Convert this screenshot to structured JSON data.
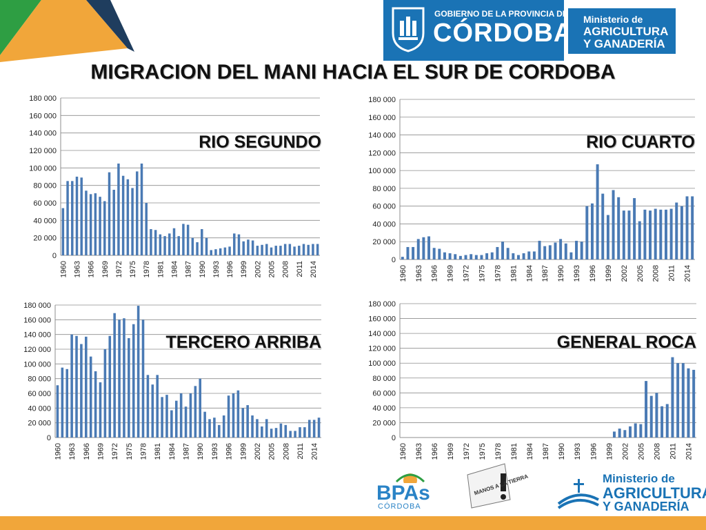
{
  "header": {
    "gov_line1": "GOBIERNO DE LA PROVINCIA DE",
    "gov_line2": "CÓRDOBA",
    "ministry_line1": "Ministerio de",
    "ministry_line2": "AGRICULTURA",
    "ministry_line3": "Y GANADERÍA"
  },
  "page_title": "MIGRACION DEL MANI HACIA EL SUR DE CORDOBA",
  "colors": {
    "bar": "#4a7ab4",
    "gov_blue": "#1a73b5",
    "corner_green": "#2e9e43",
    "corner_orange": "#f1a63a",
    "corner_navy": "#1f3d5e",
    "footer": "#f1a63a"
  },
  "footer": {
    "bpas": "BPAs",
    "bpas_sub": "CÓRDOBA",
    "manos": "MANOS A LA TIERRA",
    "ministry_line1": "Ministerio de",
    "ministry_line2": "AGRICULTURA",
    "ministry_line3": "Y GANADERÍA"
  },
  "chart_data": [
    {
      "type": "bar",
      "title": "RIO SEGUNDO",
      "x_start": 1960,
      "x_tick_labels": [
        "1960",
        "1963",
        "1966",
        "1969",
        "1972",
        "1975",
        "1978",
        "1981",
        "1984",
        "1987",
        "1990",
        "1993",
        "1996",
        "1999",
        "2002",
        "2005",
        "2008",
        "2011",
        "2014"
      ],
      "y_tick_labels": [
        "0",
        "20 000",
        "40 000",
        "60 000",
        "80 000",
        "100 000",
        "120 000",
        "140 000",
        "160 000",
        "180 000"
      ],
      "ylim": [
        0,
        180000
      ],
      "grid": true,
      "values": [
        54000,
        85000,
        85000,
        90000,
        89000,
        74000,
        70000,
        71000,
        67000,
        62000,
        95000,
        75000,
        105000,
        91000,
        87000,
        77000,
        96000,
        105000,
        60000,
        30000,
        29000,
        24000,
        22000,
        25000,
        31000,
        22000,
        36000,
        35000,
        20000,
        15000,
        30000,
        20000,
        6000,
        7000,
        8000,
        9000,
        10000,
        25000,
        24000,
        16000,
        18000,
        17000,
        11000,
        12000,
        13000,
        9000,
        11000,
        11000,
        13000,
        13000,
        10000,
        11000,
        13000,
        12000,
        13000,
        13000
      ]
    },
    {
      "type": "bar",
      "title": "RIO CUARTO",
      "x_start": 1960,
      "x_tick_labels": [
        "1960",
        "1963",
        "1966",
        "1969",
        "1972",
        "1975",
        "1978",
        "1981",
        "1984",
        "1987",
        "1990",
        "1993",
        "1996",
        "1999",
        "2002",
        "2005",
        "2008",
        "2011",
        "2014"
      ],
      "y_tick_labels": [
        "0",
        "20 000",
        "40 000",
        "60 000",
        "80 000",
        "100 000",
        "120 000",
        "140 000",
        "160 000",
        "180 000"
      ],
      "ylim": [
        0,
        180000
      ],
      "grid": true,
      "values": [
        3000,
        14000,
        14000,
        23000,
        25000,
        26000,
        13000,
        12000,
        8000,
        7000,
        6000,
        4000,
        5000,
        6000,
        5000,
        5000,
        7000,
        8000,
        14000,
        20000,
        13000,
        7000,
        5000,
        7000,
        9000,
        9000,
        21000,
        15000,
        16000,
        19000,
        23000,
        18000,
        8000,
        21000,
        20000,
        60000,
        63000,
        107000,
        74000,
        50000,
        78000,
        70000,
        55000,
        55000,
        69000,
        43000,
        56000,
        55000,
        57000,
        56000,
        56000,
        57000,
        64000,
        60000,
        71000,
        71000
      ]
    },
    {
      "type": "bar",
      "title": "TERCERO ARRIBA",
      "x_start": 1960,
      "x_tick_labels": [
        "1960",
        "1963",
        "1966",
        "1969",
        "1972",
        "1975",
        "1978",
        "1981",
        "1984",
        "1987",
        "1990",
        "1993",
        "1996",
        "1999",
        "2002",
        "2005",
        "2008",
        "2011",
        "2014"
      ],
      "y_tick_labels": [
        "0",
        "20 000",
        "40 000",
        "60 000",
        "80 000",
        "100 000",
        "120 000",
        "140 000",
        "160 000",
        "180 000"
      ],
      "ylim": [
        0,
        180000
      ],
      "grid": true,
      "values": [
        71000,
        95000,
        93000,
        140000,
        138000,
        127000,
        137000,
        110000,
        90000,
        75000,
        120000,
        138000,
        169000,
        160000,
        162000,
        135000,
        154000,
        179000,
        160000,
        85000,
        72000,
        85000,
        55000,
        58000,
        37000,
        50000,
        60000,
        42000,
        60000,
        70000,
        80000,
        35000,
        25000,
        27000,
        17000,
        30000,
        57000,
        60000,
        64000,
        40000,
        44000,
        30000,
        25000,
        15000,
        25000,
        12000,
        13000,
        19000,
        17000,
        9000,
        9000,
        14000,
        14000,
        24000,
        24000,
        27000
      ]
    },
    {
      "type": "bar",
      "title": "GENERAL ROCA",
      "x_start": 1960,
      "x_tick_labels": [
        "1960",
        "1963",
        "1966",
        "1969",
        "1972",
        "1975",
        "1978",
        "1981",
        "1984",
        "1987",
        "1990",
        "1993",
        "1996",
        "1999",
        "2002",
        "2005",
        "2008",
        "2011",
        "2014"
      ],
      "y_tick_labels": [
        "0",
        "20 000",
        "40 000",
        "60 000",
        "80 000",
        "100 000",
        "120 000",
        "140 000",
        "160 000",
        "180 000"
      ],
      "ylim": [
        0,
        180000
      ],
      "grid": true,
      "values": [
        0,
        0,
        0,
        0,
        0,
        0,
        0,
        0,
        0,
        0,
        0,
        0,
        0,
        0,
        0,
        0,
        0,
        0,
        0,
        0,
        0,
        0,
        0,
        0,
        0,
        0,
        0,
        0,
        0,
        0,
        0,
        0,
        0,
        0,
        0,
        0,
        0,
        0,
        0,
        0,
        8000,
        12000,
        10000,
        15000,
        19000,
        18000,
        76000,
        56000,
        60000,
        42000,
        45000,
        108000,
        100000,
        100000,
        93000,
        91000
      ]
    }
  ]
}
